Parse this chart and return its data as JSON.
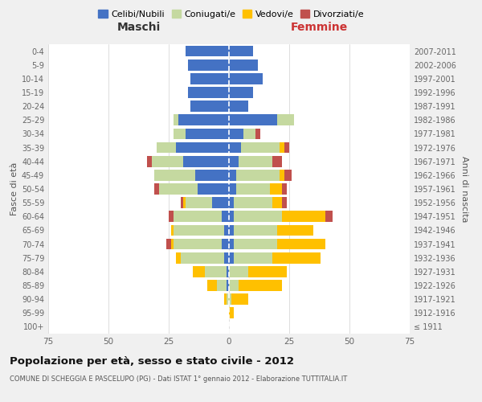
{
  "age_groups": [
    "100+",
    "95-99",
    "90-94",
    "85-89",
    "80-84",
    "75-79",
    "70-74",
    "65-69",
    "60-64",
    "55-59",
    "50-54",
    "45-49",
    "40-44",
    "35-39",
    "30-34",
    "25-29",
    "20-24",
    "15-19",
    "10-14",
    "5-9",
    "0-4"
  ],
  "birth_years": [
    "≤ 1911",
    "1912-1916",
    "1917-1921",
    "1922-1926",
    "1927-1931",
    "1932-1936",
    "1937-1941",
    "1942-1946",
    "1947-1951",
    "1952-1956",
    "1957-1961",
    "1962-1966",
    "1967-1971",
    "1972-1976",
    "1977-1981",
    "1982-1986",
    "1987-1991",
    "1992-1996",
    "1997-2001",
    "2002-2006",
    "2007-2011"
  ],
  "maschi": {
    "celibi": [
      0,
      0,
      0,
      1,
      1,
      2,
      3,
      2,
      3,
      7,
      13,
      14,
      19,
      22,
      18,
      21,
      16,
      17,
      16,
      17,
      18
    ],
    "coniugati": [
      0,
      0,
      1,
      4,
      9,
      18,
      20,
      21,
      20,
      11,
      16,
      17,
      13,
      8,
      5,
      2,
      0,
      0,
      0,
      0,
      0
    ],
    "vedovi": [
      0,
      0,
      1,
      4,
      5,
      2,
      1,
      1,
      0,
      1,
      0,
      0,
      0,
      0,
      0,
      0,
      0,
      0,
      0,
      0,
      0
    ],
    "divorziati": [
      0,
      0,
      0,
      0,
      0,
      0,
      2,
      0,
      2,
      1,
      2,
      0,
      2,
      0,
      0,
      0,
      0,
      0,
      0,
      0,
      0
    ]
  },
  "femmine": {
    "nubili": [
      0,
      0,
      0,
      0,
      0,
      2,
      2,
      2,
      2,
      2,
      3,
      3,
      4,
      5,
      6,
      20,
      8,
      10,
      14,
      12,
      10
    ],
    "coniugate": [
      0,
      0,
      1,
      4,
      8,
      16,
      18,
      18,
      20,
      16,
      14,
      18,
      14,
      16,
      5,
      7,
      0,
      0,
      0,
      0,
      0
    ],
    "vedove": [
      0,
      2,
      7,
      18,
      16,
      20,
      20,
      15,
      18,
      4,
      5,
      2,
      0,
      2,
      0,
      0,
      0,
      0,
      0,
      0,
      0
    ],
    "divorziate": [
      0,
      0,
      0,
      0,
      0,
      0,
      0,
      0,
      3,
      2,
      2,
      3,
      4,
      2,
      2,
      0,
      0,
      0,
      0,
      0,
      0
    ]
  },
  "colors": {
    "celibi": "#4472c4",
    "coniugati": "#c5d9a0",
    "vedovi": "#ffc000",
    "divorziati": "#c0504d"
  },
  "title": "Popolazione per età, sesso e stato civile - 2012",
  "subtitle": "COMUNE DI SCHEGGIA E PASCELUPO (PG) - Dati ISTAT 1° gennaio 2012 - Elaborazione TUTTITALIA.IT",
  "maschi_label": "Maschi",
  "femmine_label": "Femmine",
  "ylabel_left": "Fasce di età",
  "ylabel_right": "Anni di nascita",
  "legend_labels": [
    "Celibi/Nubili",
    "Coniugati/e",
    "Vedovi/e",
    "Divorziati/e"
  ],
  "xlim": 75,
  "background_color": "#f0f0f0",
  "plot_background": "#ffffff"
}
